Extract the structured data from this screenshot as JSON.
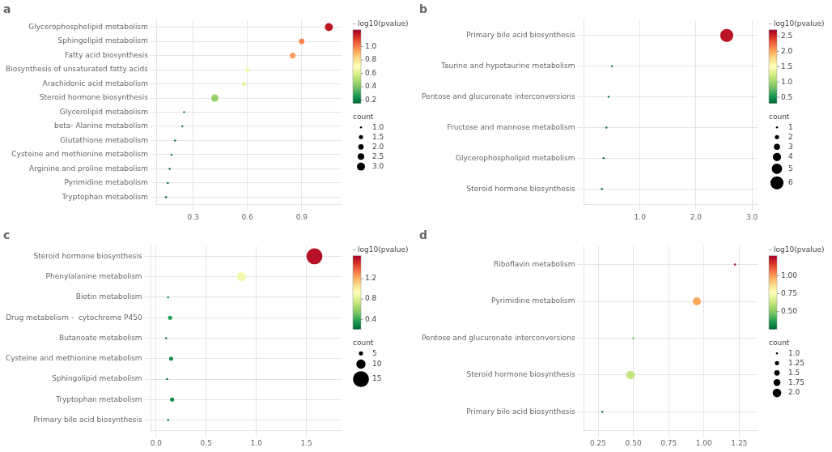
{
  "chart_data": [
    {
      "type": "bubble",
      "title": "a",
      "categories": [
        "Glycerophospholipid metabolism",
        "Sphingolipid metabolism",
        "Fatty acid biosynthesis",
        "Biosynthesis of unsaturated fatty acids",
        "Arachidonic acid metabolism",
        "Steroid hormone biosynthesis",
        "Glycerolipid metabolism",
        "beta- Alanine metabolism",
        "Glutathione metabolism",
        "Cysteine and methionine metabolism",
        "Arginine and proline metabolism",
        "Pyrimidine metabolism",
        "Tryptophan metabolism"
      ],
      "values": [
        1.05,
        0.9,
        0.85,
        0.6,
        0.58,
        0.42,
        0.25,
        0.24,
        0.2,
        0.18,
        0.17,
        0.16,
        0.15
      ],
      "sizes": [
        30,
        14,
        16,
        8,
        8,
        25,
        2,
        2,
        2,
        2,
        2,
        2,
        2
      ],
      "color_values": [
        1.2,
        1.0,
        0.95,
        0.65,
        0.62,
        0.45,
        0.22,
        0.2,
        0.19,
        0.18,
        0.17,
        0.16,
        0.15
      ],
      "xlim": [
        0.1,
        1.12
      ],
      "xticks": [
        0.3,
        0.6,
        0.9
      ],
      "grid": true,
      "colorbar_label": "- log10(pvalue)",
      "colorbar_range": [
        0.15,
        1.25
      ],
      "colorbar_ticks": [
        0.2,
        0.4,
        0.6,
        0.8,
        {
          "value": 1.0,
          "label": "1.0"
        }
      ],
      "size_legend_label": "count",
      "size_legend_values": [
        {
          "value": 1.0,
          "label": "1.0"
        },
        1.5,
        {
          "value": 2.0,
          "label": "2.0"
        },
        2.5,
        {
          "value": 3.0,
          "label": "3.0"
        }
      ],
      "size_legend_sizes": [
        2,
        8,
        14,
        20,
        30
      ]
    },
    {
      "type": "bubble",
      "title": "b",
      "categories": [
        "Primary bile acid biosynthesis",
        "Taurine and hypotaurine metabolism",
        "Pentose and glucuronate interconversions",
        "Fructose and mannose metabolism",
        "Glycerophospholipid metabolism",
        "Steroid hormone biosynthesis"
      ],
      "values": [
        2.55,
        0.5,
        0.44,
        0.4,
        0.35,
        0.32
      ],
      "sizes": [
        80,
        2,
        2,
        2,
        2,
        2
      ],
      "color_values": [
        2.6,
        0.48,
        0.44,
        0.4,
        0.37,
        0.34
      ],
      "xlim": [
        0.0,
        3.1
      ],
      "xticks": [
        {
          "value": 1.0,
          "label": "1.0"
        },
        {
          "value": 2.0,
          "label": "2.0"
        },
        {
          "value": 3.0,
          "label": "3.0"
        }
      ],
      "grid": true,
      "colorbar_label": "- log10(pvalue)",
      "colorbar_range": [
        0.3,
        2.7
      ],
      "colorbar_ticks": [
        0.5,
        {
          "value": 1.0,
          "label": "1.0"
        },
        1.5,
        {
          "value": 2.0,
          "label": "2.0"
        },
        2.5
      ],
      "size_legend_label": "count",
      "size_legend_values": [
        1,
        2,
        3,
        4,
        5,
        6
      ],
      "size_legend_sizes": [
        2,
        8,
        18,
        32,
        50,
        80
      ]
    },
    {
      "type": "bubble",
      "title": "c",
      "categories": [
        "Steroid hormone biosynthesis",
        "Phenylalanine metabolism",
        "Biotin metabolism",
        "Drug metabolism -  cytochrome P450",
        "Butanoate metabolism",
        "Cysteine and methionine metabolism",
        "Sphingolipid metabolism",
        "Tryptophan metabolism",
        "Primary bile acid biosynthesis"
      ],
      "values": [
        1.58,
        0.85,
        0.12,
        0.14,
        0.1,
        0.15,
        0.11,
        0.16,
        0.12
      ],
      "sizes": [
        120,
        40,
        2,
        8,
        2,
        8,
        2,
        8,
        2
      ],
      "color_values": [
        1.6,
        0.88,
        0.28,
        0.35,
        0.25,
        0.32,
        0.26,
        0.3,
        0.25
      ],
      "xlim": [
        -0.05,
        1.85
      ],
      "xticks": [
        {
          "value": 0.0,
          "label": "0.0"
        },
        0.5,
        {
          "value": 1.0,
          "label": "1.0"
        },
        1.5
      ],
      "grid": true,
      "colorbar_label": "- log10(pvalue)",
      "colorbar_range": [
        0.2,
        1.65
      ],
      "colorbar_ticks": [
        0.4,
        0.8,
        1.2
      ],
      "size_legend_label": "count",
      "size_legend_values": [
        5,
        10,
        15
      ],
      "size_legend_sizes": [
        8,
        40,
        120
      ]
    },
    {
      "type": "bubble",
      "title": "d",
      "categories": [
        "Riboflavin metabolism",
        "Pyrimidine metabolism",
        "Pentose and glucuronate interconversions",
        "Steroid hormone biosynthesis",
        "Primary bile acid biosynthesis"
      ],
      "values": [
        1.22,
        0.95,
        0.5,
        0.48,
        0.28
      ],
      "sizes": [
        2,
        30,
        2,
        35,
        2
      ],
      "color_values": [
        1.25,
        0.98,
        0.5,
        0.62,
        0.28
      ],
      "xlim": [
        0.15,
        1.38
      ],
      "xticks": [
        0.25,
        {
          "value": 0.5,
          "label": "0.50"
        },
        0.75,
        {
          "value": 1.0,
          "label": "1.00"
        },
        1.25
      ],
      "grid": true,
      "colorbar_label": "- log10(pvalue)",
      "colorbar_range": [
        0.25,
        1.28
      ],
      "colorbar_ticks": [
        {
          "value": 0.5,
          "label": "0.50"
        },
        0.75,
        {
          "value": 1.0,
          "label": "1.00"
        }
      ],
      "size_legend_label": "count",
      "size_legend_values": [
        {
          "value": 1.0,
          "label": "1.0"
        },
        1.25,
        {
          "value": 1.5,
          "label": "1.5"
        },
        1.75,
        {
          "value": 2.0,
          "label": "2.0"
        }
      ],
      "size_legend_sizes": [
        2,
        8,
        14,
        22,
        35
      ]
    }
  ]
}
